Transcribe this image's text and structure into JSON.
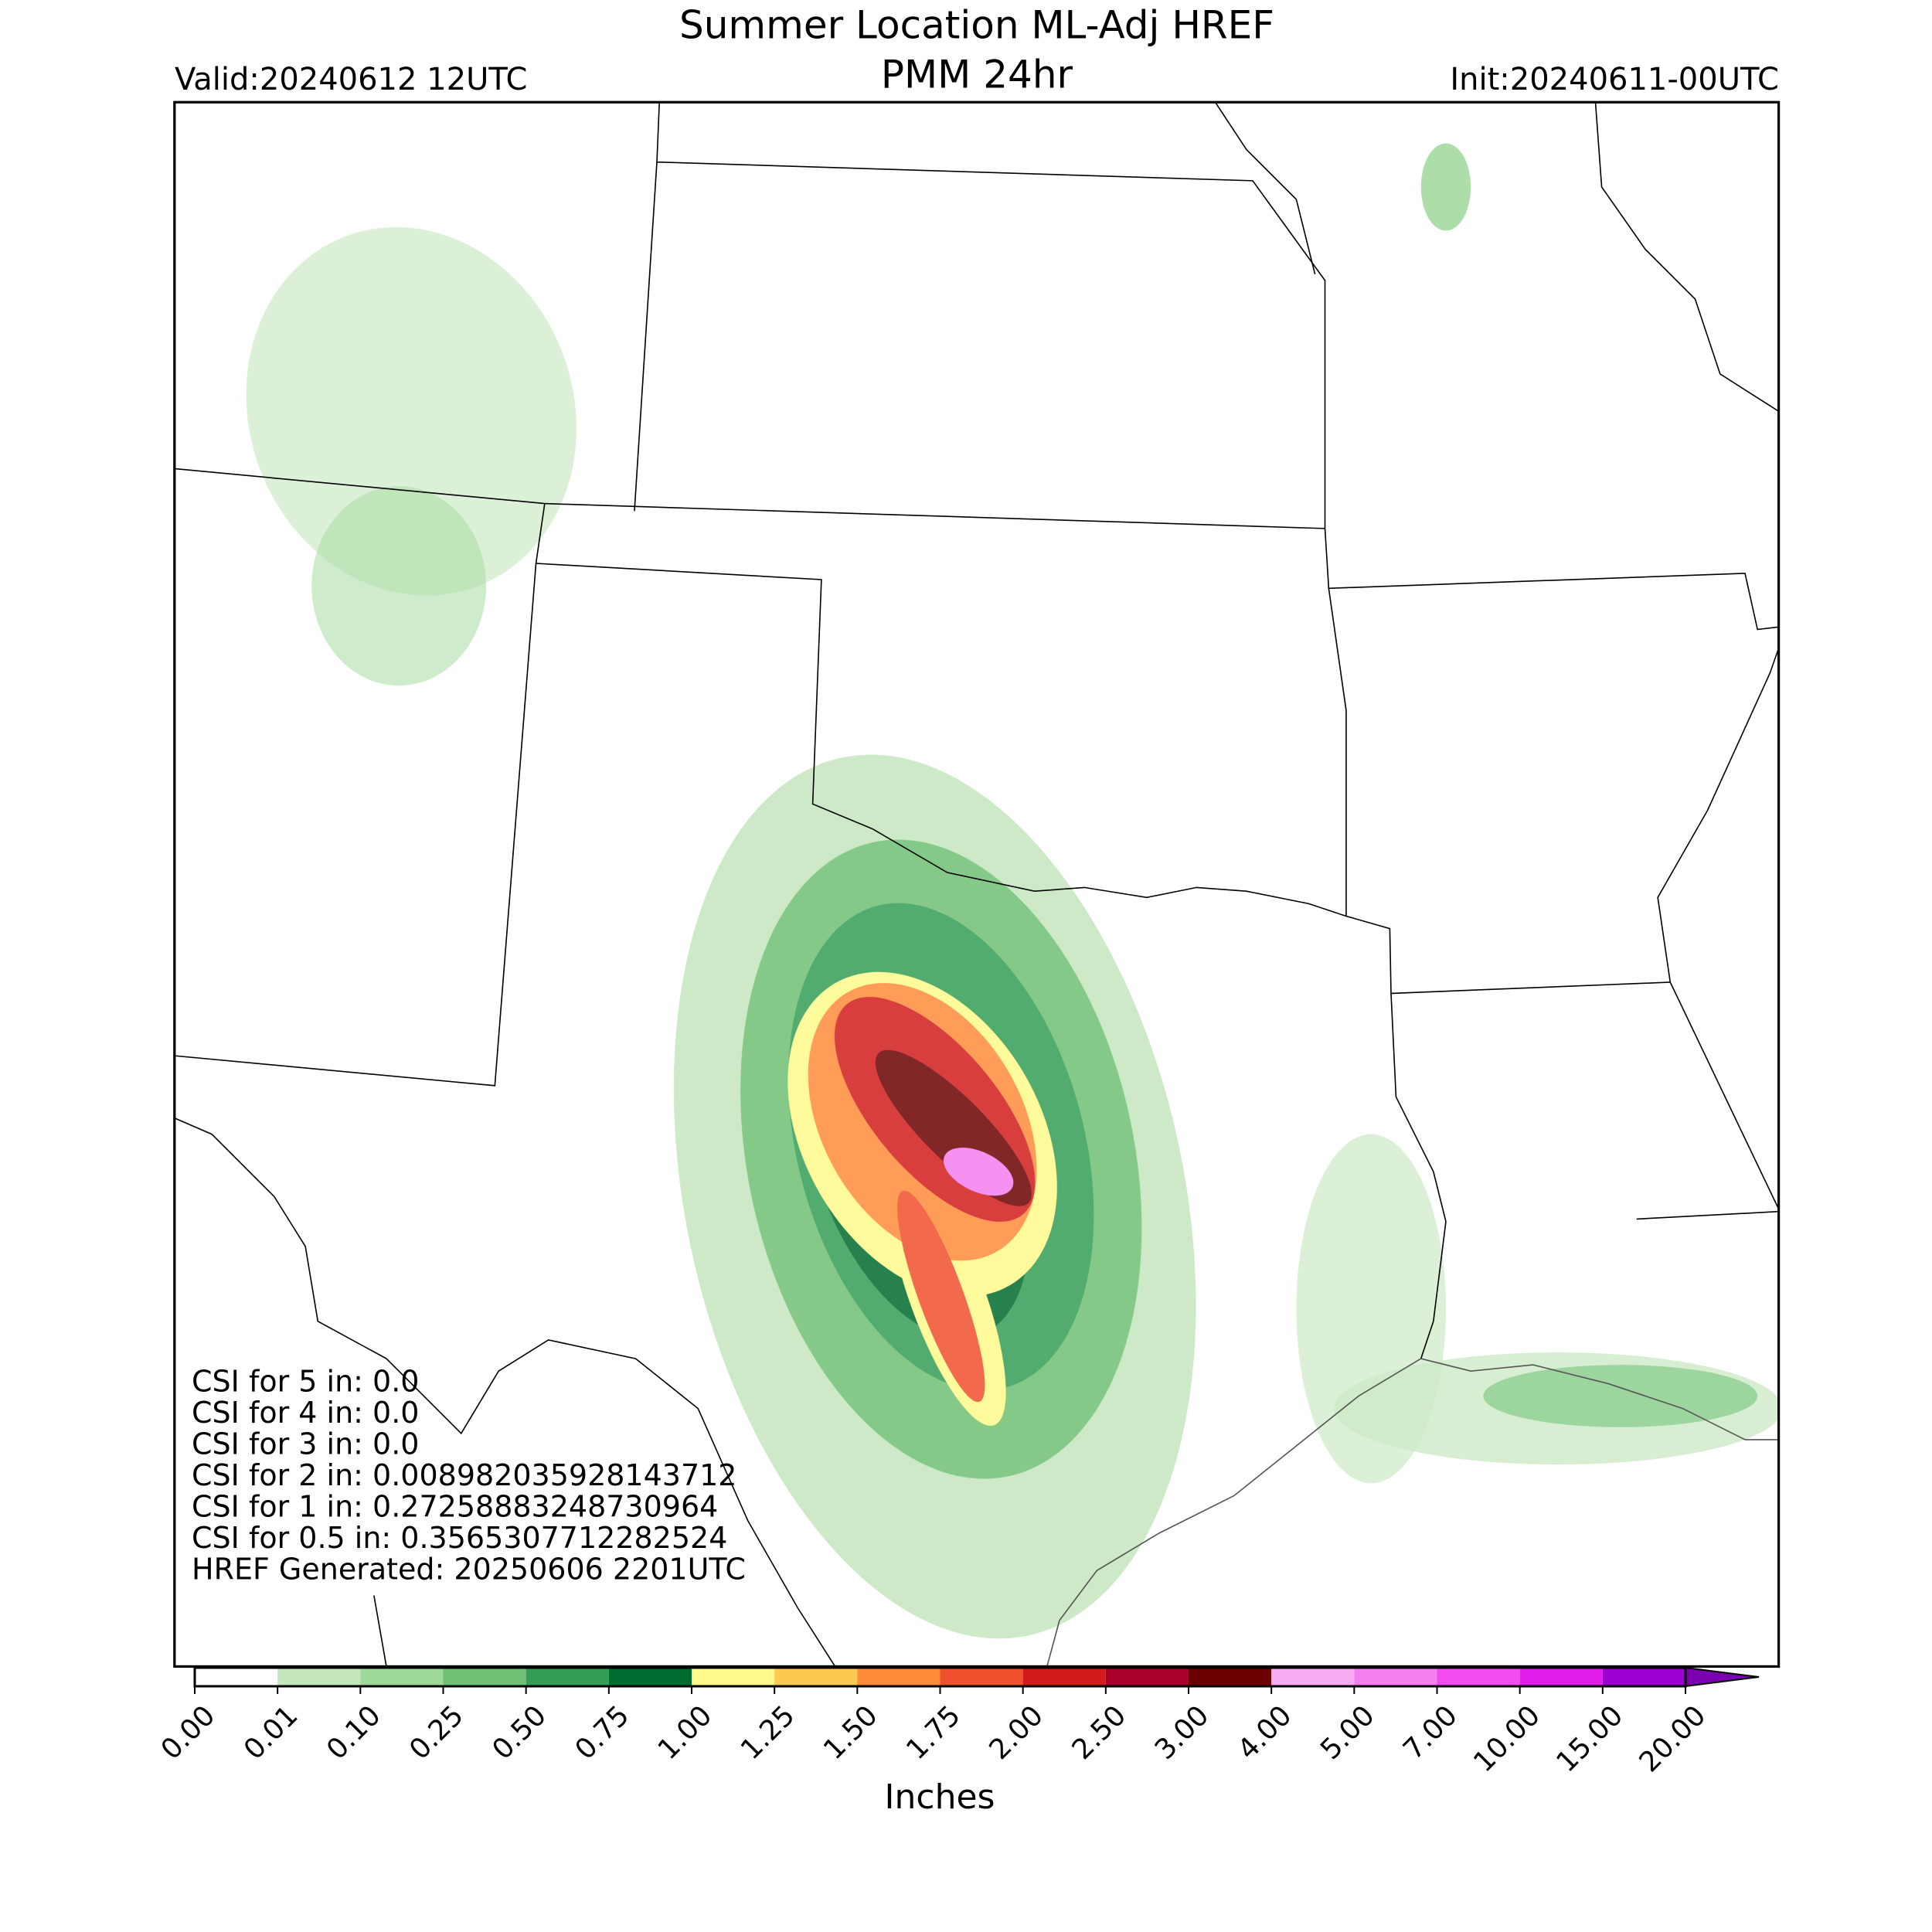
{
  "header": {
    "title": "Summer Location ML-Adj HREF",
    "subtitle": "PMM 24hr",
    "valid": "Valid:20240612 12UTC",
    "init": "Init:20240611-00UTC"
  },
  "stats": [
    "CSI for 5 in: 0.0",
    "CSI for 4 in: 0.0",
    "CSI for 3 in: 0.0",
    "CSI for 2 in: 0.008982035928143712",
    "CSI for 1 in: 0.27258883248730964",
    "CSI for 0.5 in: 0.3565307712282524",
    "HREF Generated: 20250606 2201UTC"
  ],
  "colorbar": {
    "label": "Inches",
    "ticks": [
      {
        "value": 0,
        "label": "0.00"
      },
      {
        "value": 0.01,
        "label": "0.01"
      },
      {
        "value": 0.1,
        "label": "0.10"
      },
      {
        "value": 0.25,
        "label": "0.25"
      },
      {
        "value": 0.5,
        "label": "0.50"
      },
      {
        "value": 0.75,
        "label": "0.75"
      },
      {
        "value": 1,
        "label": "1.00"
      },
      {
        "value": 1.25,
        "label": "1.25"
      },
      {
        "value": 1.5,
        "label": "1.50"
      },
      {
        "value": 1.75,
        "label": "1.75"
      },
      {
        "value": 2,
        "label": "2.00"
      },
      {
        "value": 2.5,
        "label": "2.50"
      },
      {
        "value": 3,
        "label": "3.00"
      },
      {
        "value": 4,
        "label": "4.00"
      },
      {
        "value": 5,
        "label": "5.00"
      },
      {
        "value": 7,
        "label": "7.00"
      },
      {
        "value": 10,
        "label": "10.00"
      },
      {
        "value": 15,
        "label": "15.00"
      },
      {
        "value": 20,
        "label": "20.00"
      }
    ],
    "colors": [
      "#ffffff",
      "#c4e6bd",
      "#9fd99a",
      "#6fc074",
      "#349e56",
      "#006b2e",
      "#fffa8a",
      "#ffc850",
      "#ff8c3a",
      "#f0502b",
      "#d21c1c",
      "#a8002b",
      "#6b0000",
      "#f7acf2",
      "#f57ef0",
      "#f24cee",
      "#e01ce8",
      "#9a00d0"
    ],
    "extend_color": "#7a00b0"
  }
}
